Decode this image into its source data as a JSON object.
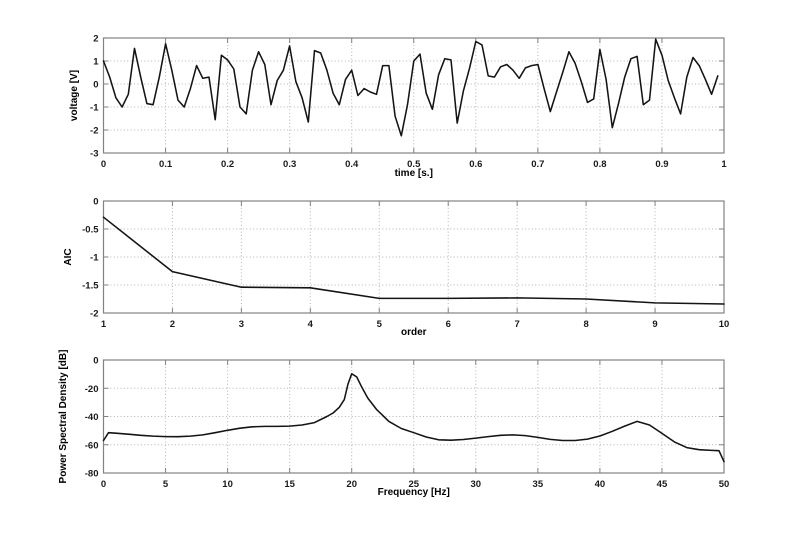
{
  "styles": {
    "background_color": "#ffffff",
    "curve_color": "#141414",
    "grid_color": "#b3b3b3",
    "box_color": "#828282",
    "text_color": "#1a1a1a"
  },
  "chart_data": [
    {
      "type": "line",
      "title": "",
      "xlabel": "time [s.]",
      "ylabel": "voltage [V]",
      "xlim": [
        0,
        1
      ],
      "ylim": [
        -3,
        2
      ],
      "grid": true,
      "legend": null,
      "xtick_values": [
        0,
        0.1,
        0.2,
        0.3,
        0.4,
        0.5,
        0.6,
        0.7,
        0.8,
        0.9,
        1
      ],
      "xtick_labels": [
        "0",
        "0.1",
        "0.2",
        "0.3",
        "0.4",
        "0.5",
        "0.6",
        "0.7",
        "0.8",
        "0.9",
        "1"
      ],
      "ytick_values": [
        2,
        1,
        0,
        -1,
        -2,
        -3
      ],
      "ytick_labels": [
        "2",
        "1",
        "0",
        "-1",
        "-2",
        "-3"
      ],
      "x_start": 0,
      "x_step": 0.01,
      "y": [
        1.0,
        0.3,
        -0.6,
        -1.0,
        -0.45,
        1.55,
        0.3,
        -0.85,
        -0.9,
        0.3,
        1.75,
        0.6,
        -0.7,
        -1.0,
        -0.2,
        0.8,
        0.25,
        0.3,
        -1.55,
        1.25,
        1.05,
        0.65,
        -1.0,
        -1.3,
        0.6,
        1.4,
        0.85,
        -0.9,
        0.15,
        0.6,
        1.65,
        0.1,
        -0.6,
        -1.65,
        1.45,
        1.35,
        0.6,
        -0.4,
        -0.9,
        0.2,
        0.6,
        -0.5,
        -0.2,
        -0.35,
        -0.45,
        0.8,
        0.8,
        -1.4,
        -2.25,
        -0.9,
        1.0,
        1.3,
        -0.4,
        -1.1,
        0.4,
        1.1,
        1.05,
        -1.7,
        -0.3,
        0.7,
        1.85,
        1.7,
        0.35,
        0.3,
        0.75,
        0.85,
        0.6,
        0.25,
        0.7,
        0.8,
        0.85,
        -0.2,
        -1.2,
        -0.35,
        0.5,
        1.4,
        0.9,
        0.1,
        -0.8,
        -0.65,
        1.5,
        0.2,
        -1.9,
        -0.85,
        0.3,
        1.1,
        1.2,
        -0.9,
        -0.7,
        1.95,
        1.25,
        0.15,
        -0.6,
        -1.3,
        0.3,
        1.15,
        0.8,
        0.2,
        -0.45,
        0.35
      ]
    },
    {
      "type": "line",
      "title": "",
      "xlabel": "order",
      "ylabel": "AIC",
      "xlim": [
        1,
        10
      ],
      "ylim": [
        -2,
        0
      ],
      "grid": true,
      "legend": null,
      "xtick_values": [
        1,
        2,
        3,
        4,
        5,
        6,
        7,
        8,
        9,
        10
      ],
      "xtick_labels": [
        "1",
        "2",
        "3",
        "4",
        "5",
        "6",
        "7",
        "8",
        "9",
        "10"
      ],
      "ytick_values": [
        0,
        -0.5,
        -1,
        -1.5,
        -2
      ],
      "ytick_labels": [
        "0",
        "-0.5",
        "-1",
        "-1.5",
        "-2"
      ],
      "x": [
        1,
        2,
        3,
        4,
        5,
        6,
        7,
        8,
        9,
        10
      ],
      "y": [
        -0.29,
        -1.26,
        -1.54,
        -1.55,
        -1.74,
        -1.74,
        -1.73,
        -1.75,
        -1.82,
        -1.84
      ]
    },
    {
      "type": "line",
      "title": "",
      "xlabel": "Frequency [Hz]",
      "ylabel": "Power Spectral Density [dB]",
      "xlim": [
        0,
        50
      ],
      "ylim": [
        -80,
        0
      ],
      "grid": true,
      "legend": null,
      "xtick_values": [
        0,
        5,
        10,
        15,
        20,
        25,
        30,
        35,
        40,
        45,
        50
      ],
      "xtick_labels": [
        "0",
        "5",
        "10",
        "15",
        "20",
        "25",
        "30",
        "35",
        "40",
        "45",
        "50"
      ],
      "ytick_values": [
        0,
        -20,
        -40,
        -60,
        -80
      ],
      "ytick_labels": [
        "0",
        "-20",
        "-40",
        "-60",
        "-80"
      ],
      "x": [
        0,
        0.4,
        1,
        2,
        3,
        4,
        5,
        6,
        7,
        8,
        9,
        10,
        11,
        12,
        13,
        14,
        15,
        16,
        17,
        18,
        18.5,
        19,
        19.4,
        19.7,
        20,
        20.4,
        20.8,
        21.3,
        22,
        23,
        24,
        25,
        26,
        27,
        28,
        29,
        30,
        31,
        32,
        33,
        34,
        35,
        36,
        37,
        38,
        39,
        40,
        41,
        42,
        43,
        44,
        45,
        46,
        47,
        48,
        49,
        49.6,
        50
      ],
      "y": [
        -57,
        -51.5,
        -51.8,
        -52.5,
        -53.3,
        -53.9,
        -54.2,
        -54.3,
        -53.9,
        -53,
        -51.5,
        -49.8,
        -48.3,
        -47.3,
        -47,
        -47,
        -46.8,
        -46,
        -44.3,
        -40,
        -37.5,
        -33.5,
        -28,
        -17,
        -9.8,
        -12,
        -19,
        -27,
        -35,
        -43.5,
        -48.5,
        -51.5,
        -54.5,
        -56.5,
        -56.8,
        -56.3,
        -55.3,
        -54.2,
        -53.3,
        -53,
        -53.5,
        -54.8,
        -56.2,
        -57,
        -57,
        -56,
        -53.8,
        -50.5,
        -46.8,
        -43.5,
        -46,
        -52,
        -58,
        -62,
        -63.5,
        -64,
        -64.2,
        -72
      ]
    }
  ]
}
